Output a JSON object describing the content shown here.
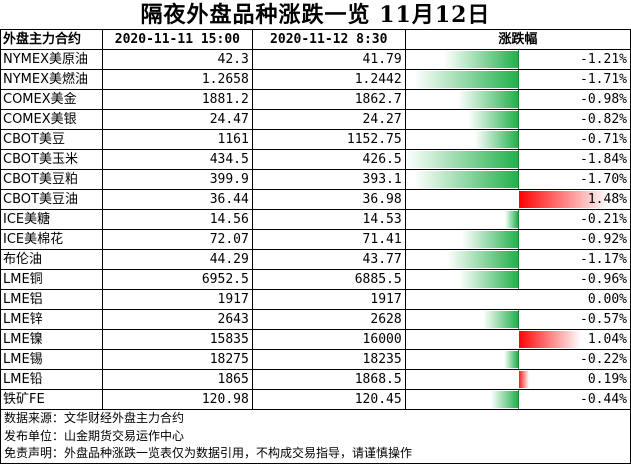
{
  "title": "隔夜外盘品种涨跌一览 11月12日",
  "header": {
    "name": "外盘主力合约",
    "col1": "2020-11-11 15:00",
    "col2": "2020-11-12 8:30",
    "chg": "涨跌幅"
  },
  "colors": {
    "down": "#22b04b",
    "up": "#ff0000"
  },
  "rows": [
    {
      "name": "NYMEX美原油",
      "prev": "42.3",
      "curr": "41.79",
      "pct": "-1.21%",
      "value": -1.21
    },
    {
      "name": "NYMEX美燃油",
      "prev": "1.2658",
      "curr": "1.2442",
      "pct": "-1.71%",
      "value": -1.71
    },
    {
      "name": "COMEX美金",
      "prev": "1881.2",
      "curr": "1862.7",
      "pct": "-0.98%",
      "value": -0.98
    },
    {
      "name": "COMEX美银",
      "prev": "24.47",
      "curr": "24.27",
      "pct": "-0.82%",
      "value": -0.82
    },
    {
      "name": "CBOT美豆",
      "prev": "1161",
      "curr": "1152.75",
      "pct": "-0.71%",
      "value": -0.71
    },
    {
      "name": "CBOT美玉米",
      "prev": "434.5",
      "curr": "426.5",
      "pct": "-1.84%",
      "value": -1.84
    },
    {
      "name": "CBOT美豆粕",
      "prev": "399.9",
      "curr": "393.1",
      "pct": "-1.70%",
      "value": -1.7
    },
    {
      "name": "CBOT美豆油",
      "prev": "36.44",
      "curr": "36.98",
      "pct": "1.48%",
      "value": 1.48
    },
    {
      "name": "ICE美糖",
      "prev": "14.56",
      "curr": "14.53",
      "pct": "-0.21%",
      "value": -0.21
    },
    {
      "name": "ICE美棉花",
      "prev": "72.07",
      "curr": "71.41",
      "pct": "-0.92%",
      "value": -0.92
    },
    {
      "name": "布伦油",
      "prev": "44.29",
      "curr": "43.77",
      "pct": "-1.17%",
      "value": -1.17
    },
    {
      "name": "LME铜",
      "prev": "6952.5",
      "curr": "6885.5",
      "pct": "-0.96%",
      "value": -0.96
    },
    {
      "name": "LME铝",
      "prev": "1917",
      "curr": "1917",
      "pct": "0.00%",
      "value": 0
    },
    {
      "name": "LME锌",
      "prev": "2643",
      "curr": "2628",
      "pct": "-0.57%",
      "value": -0.57
    },
    {
      "name": "LME镍",
      "prev": "15835",
      "curr": "16000",
      "pct": "1.04%",
      "value": 1.04
    },
    {
      "name": "LME锡",
      "prev": "18275",
      "curr": "18235",
      "pct": "-0.22%",
      "value": -0.22
    },
    {
      "name": "LME铅",
      "prev": "1865",
      "curr": "1868.5",
      "pct": "0.19%",
      "value": 0.19
    },
    {
      "name": "铁矿FE",
      "prev": "120.98",
      "curr": "120.45",
      "pct": "-0.44%",
      "value": -0.44
    }
  ],
  "footer": {
    "source": "数据来源：文华财经外盘主力合约",
    "publisher": "发布单位：山金期货交易运作中心",
    "disclaimer": "免责声明：外盘品种涨跌一览表仅为数据引用，不构成交易指导，请谨慎操作"
  }
}
